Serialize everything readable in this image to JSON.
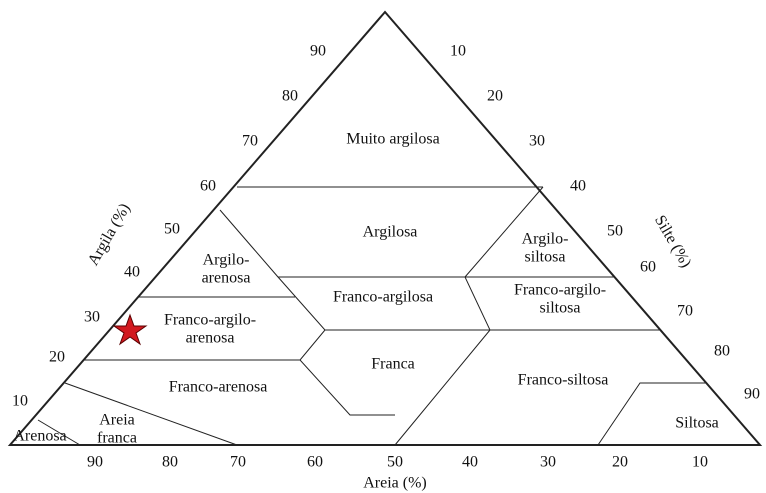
{
  "axes": {
    "clay": {
      "title": "Argila (%)",
      "ticks": [
        "90",
        "80",
        "70",
        "60",
        "50",
        "40",
        "30",
        "20",
        "10"
      ]
    },
    "silt": {
      "title": "Silte (%)",
      "ticks": [
        "10",
        "20",
        "30",
        "40",
        "50",
        "60",
        "70",
        "80",
        "90"
      ]
    },
    "sand": {
      "title": "Areia (%)",
      "ticks": [
        "90",
        "80",
        "70",
        "60",
        "50",
        "40",
        "30",
        "20",
        "10"
      ]
    }
  },
  "regions": [
    {
      "label": [
        "Muito argilosa"
      ]
    },
    {
      "label": [
        "Argilosa"
      ]
    },
    {
      "label": [
        "Argilo-",
        "arenosa"
      ]
    },
    {
      "label": [
        "Argilo-",
        "siltosa"
      ]
    },
    {
      "label": [
        "Franco-argilosa"
      ]
    },
    {
      "label": [
        "Franco-argilo-",
        "siltosa"
      ]
    },
    {
      "label": [
        "Franco-argilo-",
        "arenosa"
      ]
    },
    {
      "label": [
        "Franca"
      ]
    },
    {
      "label": [
        "Franco-arenosa"
      ]
    },
    {
      "label": [
        "Franco-siltosa"
      ]
    },
    {
      "label": [
        "Areia",
        "franca"
      ]
    },
    {
      "label": [
        "Arenosa"
      ]
    },
    {
      "label": [
        "Siltosa"
      ]
    }
  ]
}
